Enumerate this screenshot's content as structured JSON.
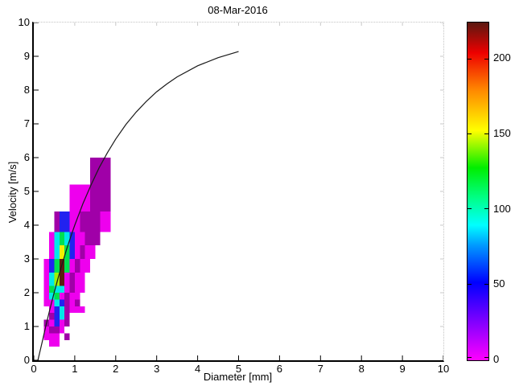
{
  "chart_data": {
    "type": "heatmap",
    "title": "08-Mar-2016",
    "xlabel": "Diameter [mm]",
    "ylabel": "Velocity [m/s]",
    "xlim": [
      0,
      10
    ],
    "ylim": [
      0,
      10
    ],
    "x_ticks": [
      0,
      1,
      2,
      3,
      4,
      5,
      6,
      7,
      8,
      9,
      10
    ],
    "y_ticks": [
      0,
      1,
      2,
      3,
      4,
      5,
      6,
      7,
      8,
      9,
      10
    ],
    "grid": false,
    "colorbar": {
      "position": "right",
      "ticks": [
        0,
        50,
        100,
        150,
        200
      ],
      "min": 0,
      "max": 224,
      "gradient_stops": [
        [
          0.0,
          "#FF00FF"
        ],
        [
          0.23,
          "#0000FF"
        ],
        [
          0.34,
          "#0099FF"
        ],
        [
          0.4,
          "#00FFFF"
        ],
        [
          0.48,
          "#00FF88"
        ],
        [
          0.57,
          "#00EE00"
        ],
        [
          0.68,
          "#FFFF00"
        ],
        [
          0.8,
          "#FF8800"
        ],
        [
          0.91,
          "#EE0000"
        ],
        [
          1.0,
          "#5A1810"
        ]
      ]
    },
    "cells_format": "[d_min_mm, d_max_mm, v_min_ms, v_max_ms, count, color]",
    "cells": [
      [
        0.375,
        0.5,
        0.4,
        0.6,
        10,
        "#EE00EE"
      ],
      [
        0.5,
        0.625,
        0.4,
        0.6,
        10,
        "#EE00EE"
      ],
      [
        0.25,
        0.375,
        0.6,
        0.8,
        10,
        "#EE00EE"
      ],
      [
        0.375,
        0.5,
        0.6,
        0.8,
        10,
        "#EE00EE"
      ],
      [
        0.5,
        0.625,
        0.6,
        0.8,
        10,
        "#EE00EE"
      ],
      [
        0.75,
        0.875,
        0.6,
        0.8,
        30,
        "#A000A8"
      ],
      [
        0.25,
        0.375,
        0.8,
        1.0,
        10,
        "#EE00EE"
      ],
      [
        0.375,
        0.5,
        0.8,
        1.0,
        30,
        "#A000A8"
      ],
      [
        0.5,
        0.625,
        0.8,
        1.0,
        30,
        "#A000A8"
      ],
      [
        0.625,
        0.75,
        0.8,
        1.0,
        10,
        "#EE00EE"
      ],
      [
        0.25,
        0.375,
        1.0,
        1.2,
        30,
        "#A000A8"
      ],
      [
        0.375,
        0.5,
        1.0,
        1.2,
        10,
        "#EE00EE"
      ],
      [
        0.5,
        0.625,
        1.0,
        1.2,
        55,
        "#2222F0"
      ],
      [
        0.625,
        0.75,
        1.0,
        1.2,
        10,
        "#EE00EE"
      ],
      [
        0.75,
        0.875,
        1.0,
        1.2,
        30,
        "#A000A8"
      ],
      [
        0.375,
        0.5,
        1.2,
        1.4,
        30,
        "#A000A8"
      ],
      [
        0.5,
        0.625,
        1.2,
        1.4,
        55,
        "#2222F0"
      ],
      [
        0.625,
        0.75,
        1.2,
        1.4,
        85,
        "#00E8E8"
      ],
      [
        0.75,
        0.875,
        1.2,
        1.4,
        30,
        "#A000A8"
      ],
      [
        0.375,
        0.5,
        1.4,
        1.6,
        10,
        "#EE00EE"
      ],
      [
        0.5,
        0.625,
        1.4,
        1.6,
        55,
        "#2222F0"
      ],
      [
        0.625,
        0.75,
        1.4,
        1.6,
        85,
        "#00E8E8"
      ],
      [
        0.75,
        0.875,
        1.4,
        1.6,
        30,
        "#A000A8"
      ],
      [
        0.875,
        1.0,
        1.4,
        1.6,
        10,
        "#EE00EE"
      ],
      [
        1.0,
        1.125,
        1.4,
        1.6,
        10,
        "#EE00EE"
      ],
      [
        1.125,
        1.25,
        1.4,
        1.6,
        10,
        "#EE00EE"
      ],
      [
        0.25,
        0.375,
        1.6,
        1.8,
        10,
        "#EE00EE"
      ],
      [
        0.375,
        0.5,
        1.6,
        1.8,
        10,
        "#EE00EE"
      ],
      [
        0.5,
        0.625,
        1.6,
        1.8,
        85,
        "#00E8E8"
      ],
      [
        0.625,
        0.75,
        1.6,
        1.8,
        55,
        "#2222F0"
      ],
      [
        0.75,
        0.875,
        1.6,
        1.8,
        30,
        "#A000A8"
      ],
      [
        0.875,
        1.0,
        1.6,
        1.8,
        10,
        "#EE00EE"
      ],
      [
        1.0,
        1.125,
        1.6,
        1.8,
        30,
        "#A000A8"
      ],
      [
        0.25,
        0.375,
        1.8,
        2.0,
        10,
        "#EE00EE"
      ],
      [
        0.375,
        0.5,
        1.8,
        2.0,
        85,
        "#00E8E8"
      ],
      [
        0.5,
        0.625,
        1.8,
        2.0,
        110,
        "#00E050"
      ],
      [
        0.625,
        0.75,
        1.8,
        2.0,
        10,
        "#EE00EE"
      ],
      [
        0.75,
        0.875,
        1.8,
        2.0,
        30,
        "#A000A8"
      ],
      [
        0.875,
        1.0,
        1.8,
        2.0,
        10,
        "#EE00EE"
      ],
      [
        1.0,
        1.125,
        1.8,
        2.0,
        10,
        "#EE00EE"
      ],
      [
        0.25,
        0.375,
        2.0,
        2.2,
        10,
        "#EE00EE"
      ],
      [
        0.375,
        0.5,
        2.0,
        2.2,
        110,
        "#00E050"
      ],
      [
        0.5,
        0.625,
        2.0,
        2.2,
        85,
        "#00E8E8"
      ],
      [
        0.625,
        0.75,
        2.0,
        2.2,
        85,
        "#00E8E8"
      ],
      [
        0.75,
        0.875,
        2.0,
        2.2,
        10,
        "#EE00EE"
      ],
      [
        0.875,
        1.0,
        2.0,
        2.2,
        30,
        "#A000A8"
      ],
      [
        1.0,
        1.125,
        2.0,
        2.2,
        10,
        "#EE00EE"
      ],
      [
        1.125,
        1.25,
        2.0,
        2.2,
        10,
        "#EE00EE"
      ],
      [
        0.25,
        0.375,
        2.2,
        2.6,
        10,
        "#EE00EE"
      ],
      [
        0.375,
        0.5,
        2.2,
        2.6,
        85,
        "#00E8E8"
      ],
      [
        0.5,
        0.625,
        2.2,
        2.6,
        135,
        "#A0F000"
      ],
      [
        0.625,
        0.75,
        2.2,
        2.6,
        220,
        "#5C1C10"
      ],
      [
        0.75,
        0.875,
        2.2,
        2.6,
        10,
        "#EE00EE"
      ],
      [
        0.875,
        1.0,
        2.2,
        2.6,
        30,
        "#A000A8"
      ],
      [
        1.0,
        1.25,
        2.2,
        2.6,
        10,
        "#EE00EE"
      ],
      [
        0.25,
        0.375,
        2.6,
        3.0,
        10,
        "#EE00EE"
      ],
      [
        0.375,
        0.5,
        2.6,
        3.0,
        55,
        "#2222F0"
      ],
      [
        0.5,
        0.625,
        2.6,
        3.0,
        110,
        "#00E050"
      ],
      [
        0.625,
        0.75,
        2.6,
        3.0,
        220,
        "#5C1C10"
      ],
      [
        0.75,
        0.875,
        2.6,
        3.0,
        110,
        "#00E050"
      ],
      [
        0.875,
        1.0,
        2.6,
        3.0,
        10,
        "#EE00EE"
      ],
      [
        1.0,
        1.125,
        2.6,
        3.0,
        30,
        "#A000A8"
      ],
      [
        1.125,
        1.375,
        2.6,
        3.0,
        10,
        "#EE00EE"
      ],
      [
        0.375,
        0.5,
        3.0,
        3.4,
        10,
        "#EE00EE"
      ],
      [
        0.5,
        0.625,
        3.0,
        3.4,
        85,
        "#00E8E8"
      ],
      [
        0.625,
        0.75,
        3.0,
        3.4,
        150,
        "#F0F000"
      ],
      [
        0.75,
        0.875,
        3.0,
        3.4,
        110,
        "#00E050"
      ],
      [
        0.875,
        1.0,
        3.0,
        3.4,
        55,
        "#2222F0"
      ],
      [
        1.0,
        1.125,
        3.0,
        3.4,
        10,
        "#EE00EE"
      ],
      [
        1.125,
        1.25,
        3.0,
        3.4,
        30,
        "#A000A8"
      ],
      [
        1.25,
        1.5,
        3.0,
        3.4,
        10,
        "#EE00EE"
      ],
      [
        0.375,
        0.5,
        3.4,
        3.8,
        10,
        "#EE00EE"
      ],
      [
        0.5,
        0.625,
        3.4,
        3.8,
        85,
        "#00E8E8"
      ],
      [
        0.625,
        0.75,
        3.4,
        3.8,
        110,
        "#00E050"
      ],
      [
        0.75,
        0.875,
        3.4,
        3.8,
        85,
        "#00E8E8"
      ],
      [
        0.875,
        1.0,
        3.4,
        3.8,
        55,
        "#2222F0"
      ],
      [
        1.0,
        1.125,
        3.4,
        3.8,
        10,
        "#EE00EE"
      ],
      [
        1.125,
        1.25,
        3.4,
        3.8,
        10,
        "#EE00EE"
      ],
      [
        1.25,
        1.625,
        3.4,
        3.8,
        30,
        "#A000A8"
      ],
      [
        0.5,
        0.625,
        3.8,
        4.4,
        30,
        "#A000A8"
      ],
      [
        0.625,
        0.75,
        3.8,
        4.4,
        55,
        "#2222F0"
      ],
      [
        0.75,
        0.875,
        3.8,
        4.4,
        55,
        "#2222F0"
      ],
      [
        0.875,
        1.0,
        3.8,
        4.4,
        10,
        "#EE00EE"
      ],
      [
        1.0,
        1.125,
        3.8,
        4.4,
        10,
        "#EE00EE"
      ],
      [
        1.125,
        1.625,
        3.8,
        4.4,
        30,
        "#A000A8"
      ],
      [
        1.625,
        1.875,
        3.8,
        4.4,
        10,
        "#EE00EE"
      ],
      [
        0.875,
        1.125,
        4.4,
        5.2,
        10,
        "#EE00EE"
      ],
      [
        1.125,
        1.375,
        4.4,
        5.2,
        10,
        "#EE00EE"
      ],
      [
        1.375,
        1.875,
        4.4,
        5.2,
        30,
        "#A000A8"
      ],
      [
        1.375,
        1.875,
        5.2,
        6.0,
        30,
        "#A000A8"
      ]
    ],
    "curve": {
      "name": "terminal-velocity-curve",
      "color": "#1a1a1a",
      "points": [
        [
          0.1,
          0.0
        ],
        [
          0.2,
          0.52
        ],
        [
          0.3,
          1.05
        ],
        [
          0.4,
          1.55
        ],
        [
          0.5,
          2.02
        ],
        [
          0.6,
          2.46
        ],
        [
          0.7,
          2.88
        ],
        [
          0.8,
          3.28
        ],
        [
          0.9,
          3.65
        ],
        [
          1.0,
          4.0
        ],
        [
          1.2,
          4.64
        ],
        [
          1.4,
          5.2
        ],
        [
          1.6,
          5.71
        ],
        [
          1.8,
          6.15
        ],
        [
          2.0,
          6.55
        ],
        [
          2.25,
          6.98
        ],
        [
          2.5,
          7.35
        ],
        [
          2.75,
          7.67
        ],
        [
          3.0,
          7.95
        ],
        [
          3.25,
          8.18
        ],
        [
          3.5,
          8.39
        ],
        [
          4.0,
          8.72
        ],
        [
          4.5,
          8.96
        ],
        [
          5.0,
          9.14
        ]
      ]
    }
  }
}
